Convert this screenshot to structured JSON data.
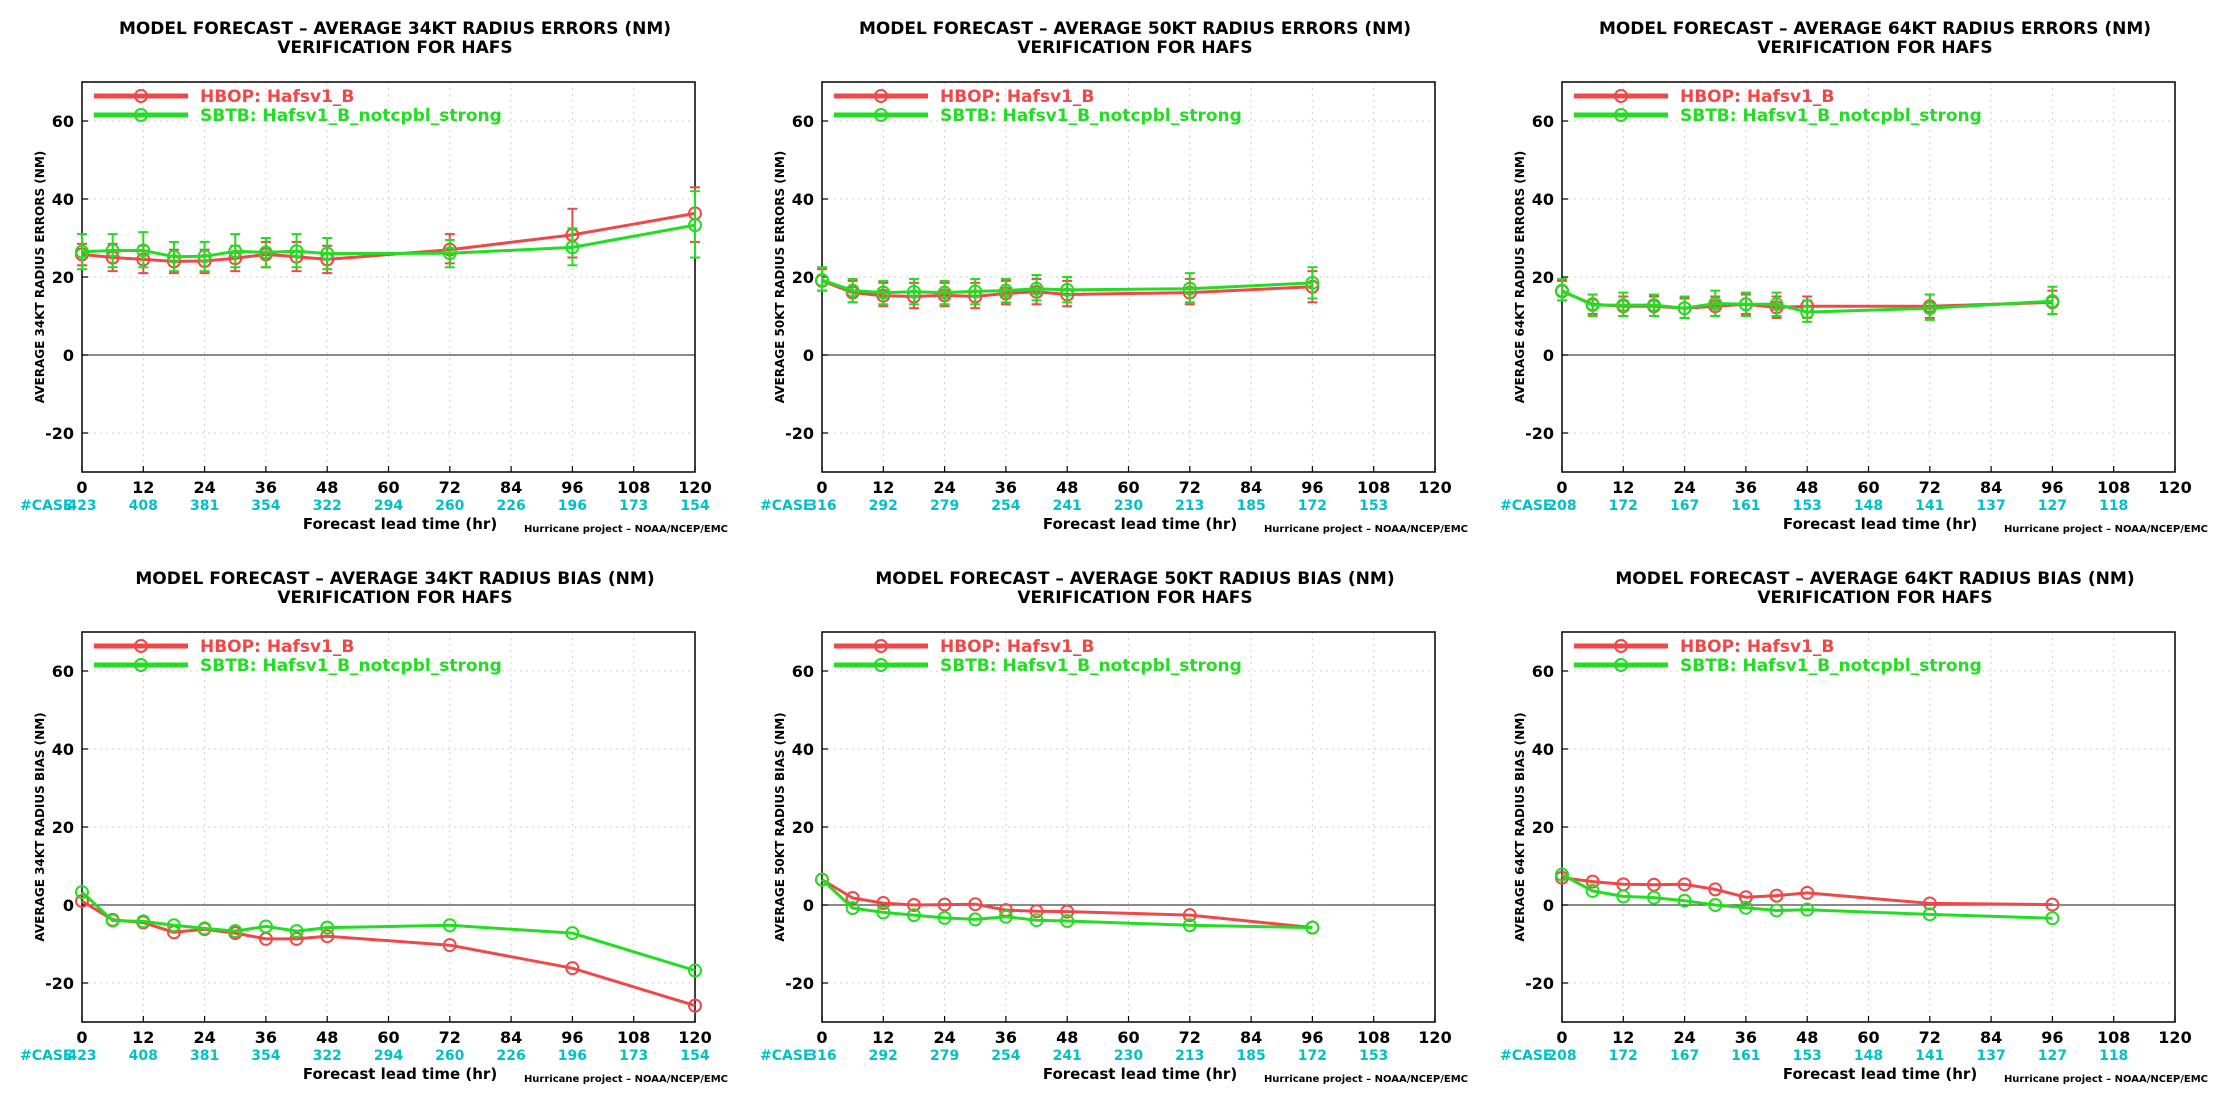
{
  "colors": {
    "hbop": "#f04848",
    "sbtb": "#22dd22",
    "case": "#00c0c8"
  },
  "x_ticks": [
    "0",
    "12",
    "24",
    "36",
    "48",
    "60",
    "72",
    "84",
    "96",
    "108",
    "120"
  ],
  "y_ticks": [
    "-20",
    "0",
    "20",
    "40",
    "60"
  ],
  "xlabel": "Forecast lead time (hr)",
  "credit": "Hurricane project – NOAA/NCEP/EMC",
  "case_label": "#CASE",
  "legend": [
    {
      "label": "HBOP:  Hafsv1_B"
    },
    {
      "label": "SBTB:  Hafsv1_B_notcpbl_strong"
    }
  ],
  "chart_data": [
    {
      "type": "line",
      "title": "MODEL FORECAST – AVERAGE 34KT RADIUS ERRORS (NM)",
      "subtitle": "VERIFICATION FOR HAFS",
      "ylabel": "AVERAGE 34KT RADIUS ERRORS (NM)",
      "xlim": [
        0,
        120
      ],
      "ylim": [
        -30,
        70
      ],
      "grid": true,
      "legend_position": "top-left",
      "case_x": [
        0,
        12,
        24,
        36,
        48,
        60,
        72,
        84,
        96,
        108,
        120
      ],
      "cases": [
        "423",
        "408",
        "381",
        "354",
        "322",
        "294",
        "260",
        "226",
        "196",
        "173",
        "154"
      ],
      "series": [
        {
          "name": "HBOP:  Hafsv1_B",
          "x": [
            0,
            6,
            12,
            18,
            24,
            30,
            36,
            42,
            48,
            72,
            96,
            120
          ],
          "y": [
            25.8,
            25,
            24.5,
            24,
            24.1,
            24.8,
            25.8,
            25.2,
            24.5,
            27,
            30.8,
            36.3
          ],
          "err": [
            [
              23,
              28.5
            ],
            [
              21.5,
              28.5
            ],
            [
              21,
              28
            ],
            [
              21,
              27
            ],
            [
              21,
              27
            ],
            [
              21.5,
              28
            ],
            [
              22.5,
              29
            ],
            [
              21.5,
              29
            ],
            [
              21,
              28
            ],
            [
              23.5,
              31
            ],
            [
              25,
              37.5
            ],
            [
              29,
              43
            ]
          ]
        },
        {
          "name": "SBTB:  Hafsv1_B_notcpbl_strong",
          "x": [
            0,
            6,
            12,
            18,
            24,
            30,
            36,
            42,
            48,
            72,
            96,
            120
          ],
          "y": [
            26.5,
            26.8,
            26.8,
            25.2,
            25.3,
            26.6,
            26.3,
            26.6,
            26,
            26.1,
            27.6,
            33.3
          ],
          "err": [
            [
              22,
              31
            ],
            [
              22.5,
              31
            ],
            [
              22.5,
              31.5
            ],
            [
              21.5,
              29
            ],
            [
              21.5,
              29
            ],
            [
              22.5,
              31
            ],
            [
              22.5,
              30
            ],
            [
              22.5,
              31
            ],
            [
              22,
              30
            ],
            [
              22.5,
              29.5
            ],
            [
              23,
              32.5
            ],
            [
              25,
              42
            ]
          ]
        }
      ]
    },
    {
      "type": "line",
      "title": "MODEL FORECAST – AVERAGE 50KT RADIUS ERRORS (NM)",
      "subtitle": "VERIFICATION FOR HAFS",
      "ylabel": "AVERAGE 50KT RADIUS ERRORS (NM)",
      "xlim": [
        0,
        120
      ],
      "ylim": [
        -30,
        70
      ],
      "grid": true,
      "legend_position": "top-left",
      "case_x": [
        0,
        12,
        24,
        36,
        48,
        60,
        72,
        84,
        96,
        108
      ],
      "cases": [
        "316",
        "292",
        "279",
        "254",
        "241",
        "230",
        "213",
        "185",
        "172",
        "153"
      ],
      "series": [
        {
          "name": "HBOP:  Hafsv1_B",
          "x": [
            0,
            6,
            12,
            18,
            24,
            30,
            36,
            42,
            48,
            72,
            96
          ],
          "y": [
            19,
            16,
            15.2,
            15,
            15.3,
            15,
            15.8,
            16.2,
            15.5,
            16,
            17.5
          ],
          "err": [
            [
              16.5,
              22
            ],
            [
              13.5,
              19
            ],
            [
              12.5,
              18.5
            ],
            [
              12,
              18.5
            ],
            [
              12.5,
              18.5
            ],
            [
              12,
              18.5
            ],
            [
              13,
              19
            ],
            [
              13,
              19.5
            ],
            [
              12.5,
              19
            ],
            [
              13,
              19.5
            ],
            [
              13.5,
              21.5
            ]
          ]
        },
        {
          "name": "SBTB:  Hafsv1_B_notcpbl_strong",
          "x": [
            0,
            6,
            12,
            18,
            24,
            30,
            36,
            42,
            48,
            72,
            96
          ],
          "y": [
            19.2,
            16.5,
            16,
            16.2,
            16,
            16.3,
            16.5,
            17,
            16.7,
            17,
            18.5
          ],
          "err": [
            [
              16.5,
              22.5
            ],
            [
              13.5,
              19.5
            ],
            [
              13,
              19
            ],
            [
              13,
              19.5
            ],
            [
              13,
              19
            ],
            [
              13,
              19.5
            ],
            [
              13.5,
              19.5
            ],
            [
              14,
              20.5
            ],
            [
              13.5,
              20
            ],
            [
              13.5,
              21
            ],
            [
              14.5,
              22.5
            ]
          ]
        }
      ]
    },
    {
      "type": "line",
      "title": "MODEL FORECAST – AVERAGE 64KT RADIUS ERRORS (NM)",
      "subtitle": "VERIFICATION FOR HAFS",
      "ylabel": "AVERAGE 64KT RADIUS ERRORS (NM)",
      "xlim": [
        0,
        120
      ],
      "ylim": [
        -30,
        70
      ],
      "grid": true,
      "legend_position": "top-left",
      "case_x": [
        0,
        12,
        24,
        36,
        48,
        60,
        72,
        84,
        96,
        108
      ],
      "cases": [
        "208",
        "172",
        "167",
        "161",
        "153",
        "148",
        "141",
        "137",
        "127",
        "118"
      ],
      "series": [
        {
          "name": "HBOP:  Hafsv1_B",
          "x": [
            0,
            6,
            12,
            18,
            24,
            30,
            36,
            42,
            48,
            72,
            96
          ],
          "y": [
            16.3,
            13,
            12.5,
            12.5,
            12,
            12.5,
            13,
            12.2,
            12.5,
            12.5,
            13.5
          ],
          "err": [
            [
              14,
              19
            ],
            [
              10.5,
              15.5
            ],
            [
              10,
              15
            ],
            [
              10,
              15
            ],
            [
              9.5,
              14.5
            ],
            [
              10,
              15
            ],
            [
              10.5,
              15.5
            ],
            [
              9.5,
              15
            ],
            [
              9.5,
              15
            ],
            [
              9.5,
              15.5
            ],
            [
              10.5,
              16.5
            ]
          ]
        },
        {
          "name": "SBTB:  Hafsv1_B_notcpbl_strong",
          "x": [
            0,
            6,
            12,
            18,
            24,
            30,
            36,
            42,
            48,
            72,
            96
          ],
          "y": [
            16.5,
            12.8,
            12.8,
            12.8,
            12,
            13.2,
            13,
            13,
            11,
            12,
            13.8
          ],
          "err": [
            [
              14,
              19.5
            ],
            [
              10,
              15.5
            ],
            [
              10,
              16
            ],
            [
              10,
              15.5
            ],
            [
              9.5,
              15
            ],
            [
              10,
              16.5
            ],
            [
              10,
              16
            ],
            [
              10,
              16
            ],
            [
              8.5,
              14
            ],
            [
              9,
              15.5
            ],
            [
              10.5,
              17.5
            ]
          ]
        }
      ]
    },
    {
      "type": "line",
      "title": "MODEL FORECAST – AVERAGE 34KT RADIUS BIAS (NM)",
      "subtitle": "VERIFICATION FOR HAFS",
      "ylabel": "AVERAGE 34KT RADIUS BIAS (NM)",
      "xlim": [
        0,
        120
      ],
      "ylim": [
        -30,
        70
      ],
      "grid": true,
      "legend_position": "top-left",
      "case_x": [
        0,
        12,
        24,
        36,
        48,
        60,
        72,
        84,
        96,
        108,
        120
      ],
      "cases": [
        "423",
        "408",
        "381",
        "354",
        "322",
        "294",
        "260",
        "226",
        "196",
        "173",
        "154"
      ],
      "series": [
        {
          "name": "HBOP:  Hafsv1_B",
          "x": [
            0,
            6,
            12,
            18,
            24,
            30,
            36,
            42,
            48,
            72,
            96,
            120
          ],
          "y": [
            1,
            -3.8,
            -4.5,
            -7,
            -6.2,
            -7.2,
            -8.7,
            -8.7,
            -8,
            -10.3,
            -16.2,
            -25.8
          ]
        },
        {
          "name": "SBTB:  Hafsv1_B_notcpbl_strong",
          "x": [
            0,
            6,
            12,
            18,
            24,
            30,
            36,
            42,
            48,
            72,
            96,
            120
          ],
          "y": [
            3.3,
            -4,
            -4.2,
            -5.2,
            -6,
            -6.7,
            -5.5,
            -6.7,
            -5.8,
            -5.2,
            -7.2,
            -16.8
          ]
        }
      ]
    },
    {
      "type": "line",
      "title": "MODEL FORECAST – AVERAGE 50KT RADIUS BIAS (NM)",
      "subtitle": "VERIFICATION FOR HAFS",
      "ylabel": "AVERAGE 50KT RADIUS BIAS (NM)",
      "xlim": [
        0,
        120
      ],
      "ylim": [
        -30,
        70
      ],
      "grid": true,
      "legend_position": "top-left",
      "case_x": [
        0,
        12,
        24,
        36,
        48,
        60,
        72,
        84,
        96,
        108
      ],
      "cases": [
        "316",
        "292",
        "279",
        "254",
        "241",
        "230",
        "213",
        "185",
        "172",
        "153"
      ],
      "series": [
        {
          "name": "HBOP:  Hafsv1_B",
          "x": [
            0,
            6,
            12,
            18,
            24,
            30,
            36,
            42,
            48,
            72,
            96
          ],
          "y": [
            6.5,
            1.8,
            0.5,
            0,
            0.1,
            0.2,
            -1.3,
            -1.6,
            -1.7,
            -2.6,
            -5.8
          ]
        },
        {
          "name": "SBTB:  Hafsv1_B_notcpbl_strong",
          "x": [
            0,
            6,
            12,
            18,
            24,
            30,
            36,
            42,
            48,
            72,
            96
          ],
          "y": [
            6.5,
            -0.8,
            -1.9,
            -2.6,
            -3.3,
            -3.7,
            -3,
            -3.9,
            -4.1,
            -5.2,
            -5.8
          ]
        }
      ]
    },
    {
      "type": "line",
      "title": "MODEL FORECAST – AVERAGE 64KT RADIUS BIAS (NM)",
      "subtitle": "VERIFICATION FOR HAFS",
      "ylabel": "AVERAGE 64KT RADIUS BIAS (NM)",
      "xlim": [
        0,
        120
      ],
      "ylim": [
        -30,
        70
      ],
      "grid": true,
      "legend_position": "top-left",
      "case_x": [
        0,
        12,
        24,
        36,
        48,
        60,
        72,
        84,
        96,
        108
      ],
      "cases": [
        "208",
        "172",
        "167",
        "161",
        "153",
        "148",
        "141",
        "137",
        "127",
        "118"
      ],
      "series": [
        {
          "name": "HBOP:  Hafsv1_B",
          "x": [
            0,
            6,
            12,
            18,
            24,
            30,
            36,
            42,
            48,
            72,
            96
          ],
          "y": [
            7,
            6,
            5.3,
            5.2,
            5.3,
            4,
            2,
            2.4,
            3.1,
            0.4,
            0.1
          ]
        },
        {
          "name": "SBTB:  Hafsv1_B_notcpbl_strong",
          "x": [
            0,
            6,
            12,
            18,
            24,
            30,
            36,
            42,
            48,
            72,
            96
          ],
          "y": [
            7.8,
            3.6,
            2.2,
            1.9,
            1.1,
            0,
            -0.7,
            -1.4,
            -1.2,
            -2.4,
            -3.4
          ]
        }
      ]
    }
  ]
}
